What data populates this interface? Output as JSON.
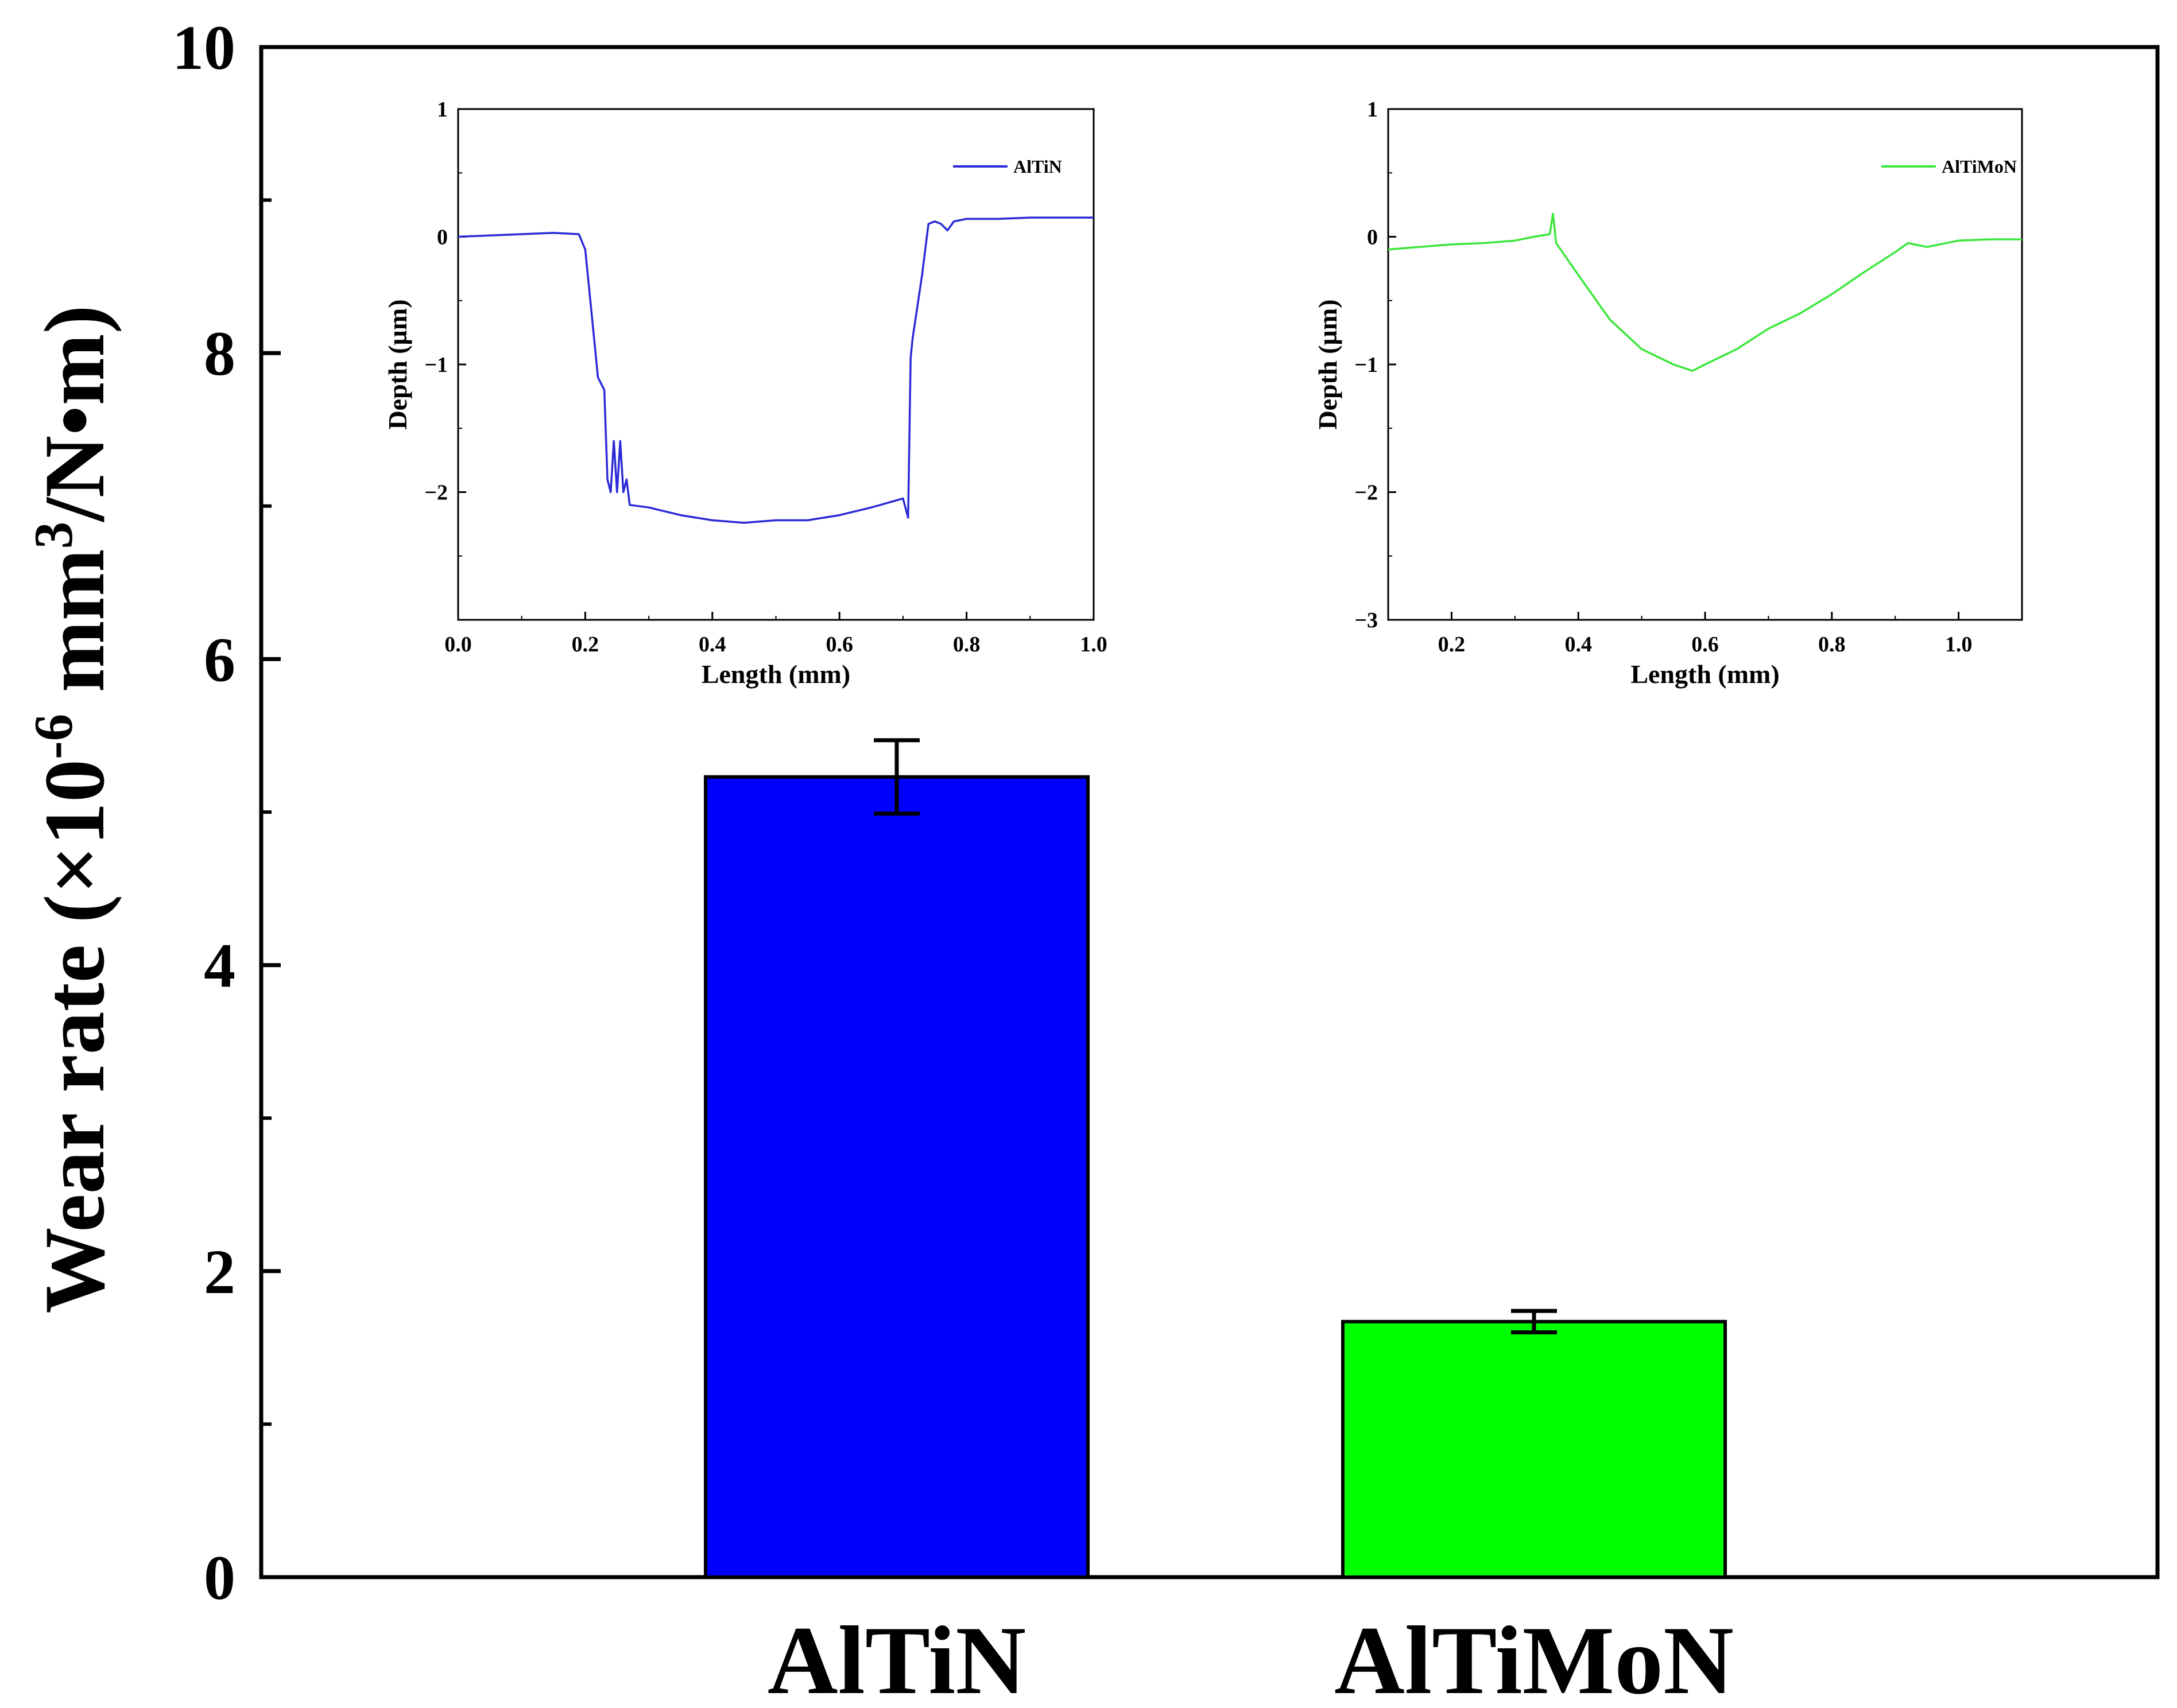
{
  "chart_data": [
    {
      "type": "bar",
      "role": "main",
      "categories": [
        "AlTiN",
        "AlTiMoN"
      ],
      "values": [
        5.23,
        1.67
      ],
      "errors": [
        0.24,
        0.07
      ],
      "colors": [
        "#0000ff",
        "#00ff00"
      ],
      "ylabel_main": "Wear rate (×10",
      "ylabel_sup1": "-6",
      "ylabel_mid": " mm",
      "ylabel_sup2": "3",
      "ylabel_end": "/N•m)",
      "ylim": [
        0,
        10
      ],
      "yticks": [
        "0",
        "2",
        "4",
        "6",
        "8",
        "10"
      ],
      "grid": false,
      "legend": "none"
    },
    {
      "type": "line",
      "role": "inset-left",
      "xlabel": "Length (mm)",
      "ylabel": "Depth (µm)",
      "xlim": [
        0,
        1.0
      ],
      "ylim": [
        -3,
        1
      ],
      "xticks": [
        "0.0",
        "0.2",
        "0.4",
        "0.6",
        "0.8",
        "1.0"
      ],
      "yticks": [
        "1",
        "0",
        "−1",
        "−2"
      ],
      "legend": "top-right",
      "series": [
        {
          "name": "AlTiN",
          "color": "#2a2ad8",
          "x": [
            0,
            0.05,
            0.1,
            0.15,
            0.19,
            0.2,
            0.21,
            0.22,
            0.23,
            0.235,
            0.24,
            0.245,
            0.25,
            0.255,
            0.26,
            0.265,
            0.27,
            0.3,
            0.35,
            0.4,
            0.45,
            0.5,
            0.55,
            0.6,
            0.65,
            0.7,
            0.708,
            0.712,
            0.715,
            0.73,
            0.74,
            0.75,
            0.76,
            0.77,
            0.78,
            0.8,
            0.85,
            0.9,
            0.95,
            1.0
          ],
          "y": [
            0.0,
            0.01,
            0.02,
            0.03,
            0.02,
            -0.1,
            -0.6,
            -1.1,
            -1.2,
            -1.9,
            -2.0,
            -1.6,
            -2.0,
            -1.6,
            -2.0,
            -1.9,
            -2.1,
            -2.12,
            -2.18,
            -2.22,
            -2.24,
            -2.22,
            -2.22,
            -2.18,
            -2.12,
            -2.05,
            -2.2,
            -0.95,
            -0.8,
            -0.3,
            0.1,
            0.12,
            0.1,
            0.05,
            0.12,
            0.14,
            0.14,
            0.15,
            0.15,
            0.15
          ]
        }
      ]
    },
    {
      "type": "line",
      "role": "inset-right",
      "xlabel": "Length (mm)",
      "ylabel": "Depth (µm)",
      "xlim": [
        0.1,
        1.1
      ],
      "ylim": [
        -3,
        1
      ],
      "xticks": [
        "0.2",
        "0.4",
        "0.6",
        "0.8",
        "1.0"
      ],
      "yticks": [
        "1",
        "0",
        "−1",
        "−2",
        "−3"
      ],
      "legend": "top-right",
      "series": [
        {
          "name": "AlTiMoN",
          "color": "#3ce63c",
          "x": [
            0.1,
            0.15,
            0.2,
            0.25,
            0.3,
            0.33,
            0.355,
            0.36,
            0.365,
            0.4,
            0.45,
            0.5,
            0.55,
            0.58,
            0.6,
            0.65,
            0.7,
            0.75,
            0.8,
            0.85,
            0.9,
            0.92,
            0.95,
            1.0,
            1.05,
            1.1
          ],
          "y": [
            -0.1,
            -0.08,
            -0.06,
            -0.05,
            -0.03,
            0.0,
            0.02,
            0.18,
            -0.05,
            -0.3,
            -0.65,
            -0.88,
            -1.0,
            -1.05,
            -1.0,
            -0.88,
            -0.72,
            -0.6,
            -0.45,
            -0.28,
            -0.12,
            -0.05,
            -0.08,
            -0.03,
            -0.02,
            -0.02
          ]
        }
      ]
    }
  ]
}
